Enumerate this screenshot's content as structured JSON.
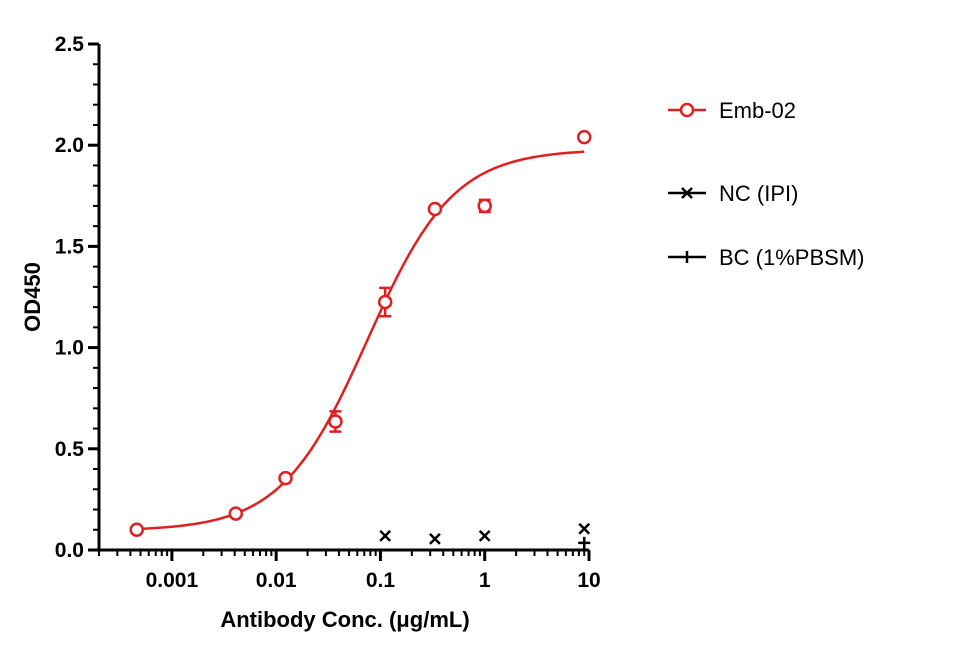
{
  "chart_data": {
    "type": "scatter",
    "xlabel": "Antibody Conc. (μg/mL)",
    "ylabel": "OD450",
    "x_scale": "log",
    "xlim": [
      0.0002,
      10
    ],
    "ylim": [
      0,
      2.5
    ],
    "x_ticks": [
      {
        "value": 0.001,
        "label": "0.001"
      },
      {
        "value": 0.01,
        "label": "0.01"
      },
      {
        "value": 0.1,
        "label": "0.1"
      },
      {
        "value": 1,
        "label": "1"
      },
      {
        "value": 10,
        "label": "10"
      }
    ],
    "y_ticks": [
      {
        "value": 0.0,
        "label": "0.0"
      },
      {
        "value": 0.5,
        "label": "0.5"
      },
      {
        "value": 1.0,
        "label": "1.0"
      },
      {
        "value": 1.5,
        "label": "1.5"
      },
      {
        "value": 2.0,
        "label": "2.0"
      },
      {
        "value": 2.5,
        "label": "2.5"
      }
    ],
    "legend_position": "right",
    "grid": false,
    "series": [
      {
        "name": "Emb-02",
        "color": "#e02020",
        "marker": "circle",
        "fit_curve": true,
        "points": [
          {
            "x": 0.00046,
            "y": 0.1,
            "err": 0.0
          },
          {
            "x": 0.0041,
            "y": 0.18,
            "err": 0.01
          },
          {
            "x": 0.0123,
            "y": 0.355,
            "err": 0.01
          },
          {
            "x": 0.037,
            "y": 0.635,
            "err": 0.05
          },
          {
            "x": 0.111,
            "y": 1.225,
            "err": 0.07
          },
          {
            "x": 0.333,
            "y": 1.685,
            "err": 0.0
          },
          {
            "x": 1.0,
            "y": 1.7,
            "err": 0.03
          },
          {
            "x": 9.0,
            "y": 2.04,
            "err": 0.0
          }
        ]
      },
      {
        "name": "NC (IPI)",
        "color": "#000000",
        "marker": "x",
        "points": [
          {
            "x": 0.111,
            "y": 0.07
          },
          {
            "x": 0.333,
            "y": 0.055
          },
          {
            "x": 1.0,
            "y": 0.07
          },
          {
            "x": 9.0,
            "y": 0.105
          }
        ]
      },
      {
        "name": "BC (1%PBSM)",
        "color": "#000000",
        "marker": "plus",
        "points": [
          {
            "x": 9.0,
            "y": 0.035
          }
        ]
      }
    ]
  }
}
